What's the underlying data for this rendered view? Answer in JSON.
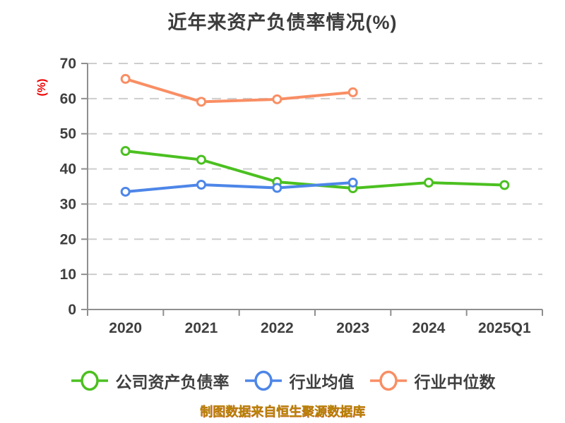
{
  "title": {
    "text": "近年来资产负债率情况(%)",
    "color": "#3c3c3c"
  },
  "footer": {
    "text": "制图数据来自恒生聚源数据库",
    "color": "#b8860b"
  },
  "chart_data": {
    "type": "line",
    "title": "近年来资产负债率情况(%)",
    "ylabel": "(%)",
    "ylabel_color": "#ee0000",
    "categories": [
      "2020",
      "2021",
      "2022",
      "2023",
      "2024",
      "2025Q1"
    ],
    "series": [
      {
        "key": "company-debt-ratio",
        "name": "公司资产负债率",
        "color": "#4bc020",
        "values": [
          45.1,
          42.6,
          36.3,
          34.5,
          36.1,
          35.4
        ]
      },
      {
        "key": "industry-average",
        "name": "行业均值",
        "color": "#4d86e8",
        "values": [
          33.5,
          35.5,
          34.6,
          36.1,
          null,
          null
        ]
      },
      {
        "key": "industry-median",
        "name": "行业中位数",
        "color": "#f98e64",
        "values": [
          65.6,
          59.1,
          59.8,
          61.8,
          null,
          null
        ]
      }
    ],
    "ylim": [
      0,
      70
    ],
    "ytick_step": 10,
    "ytick_labels": [
      "0",
      "10",
      "20",
      "30",
      "40",
      "50",
      "60",
      "70"
    ],
    "grid": "horizontal-dashed",
    "grid_color": "#cdcdcd",
    "axis_color": "#8f8f8f",
    "tick_label_color": "#3f3f3f",
    "legend_position": "bottom"
  }
}
